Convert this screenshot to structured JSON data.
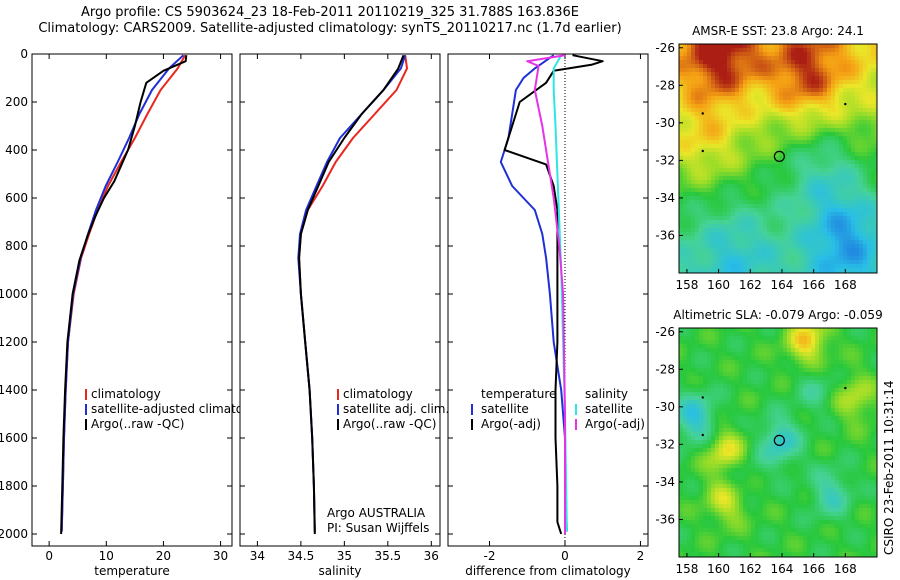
{
  "header": {
    "line1": "Argo profile: CS 5903624_23 18-Feb-2011 20110219_325 31.788S 163.836E",
    "line2": "Climatology: CARS2009. Satellite-adjusted climatology: synTS_20110217.nc (1.7d earlier)"
  },
  "credit": {
    "program": "Argo AUSTRALIA",
    "pi": "PI: Susan Wijffels",
    "stamp": "CSIRO 23-Feb-2011 10:31:14"
  },
  "colors": {
    "climatology": "#e8271f",
    "satellite": "#1f2fd6",
    "argo": "#000000",
    "sal_satellite": "#2ee6e6",
    "sal_argo": "#e633e6"
  },
  "chart_data": [
    {
      "type": "line",
      "xlabel": "temperature",
      "ylabel": "",
      "xlim": [
        -3,
        32
      ],
      "ylim": [
        2050,
        0
      ],
      "xticks": [
        "0",
        "10",
        "20",
        "30"
      ],
      "yticks": [
        "0",
        "200",
        "400",
        "600",
        "800",
        "1000",
        "1200",
        "1400",
        "1600",
        "1800",
        "2000"
      ],
      "legend": {
        "position": "lower-center",
        "entries": [
          "climatology",
          "satellite-adjusted climatolog",
          "Argo(..raw -QC)"
        ]
      },
      "series": [
        {
          "name": "climatology",
          "color_key": "climatology",
          "x": [
            23.8,
            22.5,
            19.5,
            17.2,
            15.0,
            12.6,
            10.3,
            8.5,
            7.0,
            5.6,
            4.3,
            3.3,
            2.9,
            2.6,
            2.4,
            2.2
          ],
          "y": [
            5,
            60,
            150,
            250,
            350,
            450,
            550,
            650,
            750,
            850,
            1000,
            1200,
            1400,
            1600,
            1800,
            1990
          ]
        },
        {
          "name": "satellite-adjusted climatolog",
          "color_key": "satellite",
          "x": [
            23.5,
            21.0,
            18.0,
            15.8,
            14.0,
            12.0,
            9.9,
            8.2,
            6.8,
            5.5,
            4.2,
            3.3,
            2.9,
            2.6,
            2.4,
            2.2
          ],
          "y": [
            5,
            60,
            150,
            250,
            350,
            450,
            550,
            650,
            750,
            850,
            1000,
            1200,
            1400,
            1600,
            1800,
            1990
          ]
        },
        {
          "name": "Argo(..raw -QC)",
          "color_key": "argo",
          "x": [
            24.0,
            23.9,
            20.0,
            17.0,
            16.0,
            15.0,
            13.8,
            12.5,
            11.4,
            9.6,
            8.0,
            6.7,
            5.3,
            4.1,
            3.2,
            2.8,
            2.5,
            2.3,
            2.1
          ],
          "y": [
            5,
            30,
            70,
            120,
            200,
            300,
            400,
            470,
            530,
            600,
            680,
            760,
            860,
            1000,
            1200,
            1400,
            1600,
            1800,
            2000
          ]
        }
      ]
    },
    {
      "type": "line",
      "xlabel": "salinity",
      "ylabel": "",
      "xlim": [
        33.8,
        36.1
      ],
      "ylim": [
        2050,
        0
      ],
      "xticks": [
        "34",
        "34.5",
        "35",
        "35.5",
        "36"
      ],
      "legend": {
        "position": "lower-center",
        "entries": [
          "climatology",
          "satellite adj. clim.",
          "Argo(..raw -QC)"
        ]
      },
      "series": [
        {
          "name": "climatology",
          "color_key": "climatology",
          "x": [
            35.7,
            35.72,
            35.6,
            35.35,
            35.1,
            34.9,
            34.75,
            34.58,
            34.5,
            34.48,
            34.5,
            34.55,
            34.6,
            34.63,
            34.65,
            34.66
          ],
          "y": [
            5,
            60,
            150,
            250,
            350,
            450,
            550,
            650,
            750,
            850,
            1000,
            1200,
            1400,
            1600,
            1800,
            1990
          ]
        },
        {
          "name": "satellite adj. clim.",
          "color_key": "satellite",
          "x": [
            35.7,
            35.65,
            35.45,
            35.2,
            34.95,
            34.8,
            34.68,
            34.56,
            34.49,
            34.47,
            34.5,
            34.55,
            34.6,
            34.63,
            34.65,
            34.66
          ],
          "y": [
            5,
            60,
            150,
            250,
            350,
            450,
            550,
            650,
            750,
            850,
            1000,
            1200,
            1400,
            1600,
            1800,
            1990
          ]
        },
        {
          "name": "Argo(..raw -QC)",
          "color_key": "argo",
          "x": [
            35.68,
            35.62,
            35.45,
            35.2,
            35.0,
            34.82,
            34.7,
            34.58,
            34.5,
            34.48,
            34.5,
            34.55,
            34.6,
            34.63,
            34.65,
            34.66
          ],
          "y": [
            5,
            60,
            150,
            250,
            350,
            450,
            550,
            650,
            750,
            850,
            1000,
            1200,
            1400,
            1600,
            1800,
            2000
          ]
        }
      ]
    },
    {
      "type": "line",
      "xlabel": "difference from climatology",
      "ylabel": "",
      "xlim": [
        -3.1,
        2.2
      ],
      "ylim": [
        2050,
        0
      ],
      "xticks": [
        "-2",
        "0",
        "2"
      ],
      "legend": {
        "position": "lower-center",
        "groups": [
          {
            "heading": "temperature",
            "entries": [
              "satellite",
              "Argo(-adj)"
            ]
          },
          {
            "heading": "salinity",
            "entries": [
              "satellite",
              "Argo(-adj)"
            ]
          }
        ]
      },
      "series": [
        {
          "name": "temperature satellite",
          "color_key": "satellite",
          "x": [
            -0.3,
            -0.8,
            -1.1,
            -1.3,
            -1.4,
            -1.5,
            -1.7,
            -1.4,
            -0.8,
            -0.6,
            -0.5,
            -0.4,
            -0.3,
            -0.2,
            -0.1,
            -0.05,
            0.0,
            0.0,
            0.05
          ],
          "y": [
            5,
            60,
            100,
            150,
            250,
            350,
            450,
            550,
            650,
            750,
            850,
            1000,
            1200,
            1300,
            1400,
            1500,
            1600,
            1800,
            1990
          ]
        },
        {
          "name": "temperature Argo(-adj)",
          "color_key": "argo",
          "x": [
            0.2,
            1.0,
            0.7,
            -0.3,
            -0.5,
            -1.2,
            -1.6,
            -0.5,
            -0.3,
            -0.2,
            -0.2,
            -0.2,
            -0.2,
            -0.25,
            -0.25,
            -0.2,
            -0.2,
            -0.1
          ],
          "y": [
            5,
            30,
            45,
            70,
            120,
            200,
            400,
            460,
            550,
            650,
            800,
            1000,
            1200,
            1400,
            1600,
            1800,
            1950,
            2000
          ]
        },
        {
          "name": "salinity satellite",
          "color_key": "sal_satellite",
          "x": [
            -0.1,
            -0.3,
            -0.3,
            -0.25,
            -0.2,
            -0.15,
            -0.1,
            -0.05,
            0.0,
            0.05
          ],
          "y": [
            5,
            60,
            150,
            300,
            500,
            700,
            900,
            1200,
            1500,
            1990
          ]
        },
        {
          "name": "salinity Argo(-adj)",
          "color_key": "sal_argo",
          "x": [
            0.0,
            -1.0,
            -0.7,
            -0.8,
            -0.6,
            -0.45,
            -0.3,
            -0.15,
            -0.05,
            0.0,
            0.0
          ],
          "y": [
            5,
            30,
            50,
            150,
            300,
            450,
            600,
            800,
            1000,
            1500,
            2000
          ]
        }
      ]
    },
    {
      "type": "heatmap",
      "title": "AMSR-E SST: 23.8 Argo: 24.1",
      "xlim": [
        157.5,
        170
      ],
      "ylim": [
        -38,
        -25.8
      ],
      "xticks": [
        "158",
        "160",
        "162",
        "164",
        "166",
        "168"
      ],
      "yticks": [
        "-26",
        "-28",
        "-30",
        "-32",
        "-34",
        "-36"
      ],
      "marker": {
        "lon": 163.836,
        "lat": -31.788
      },
      "features": [
        {
          "kind": "warm",
          "lon": 160,
          "lat": -26.5,
          "strength": 1.0
        },
        {
          "kind": "warm",
          "lon": 165.5,
          "lat": -27.5,
          "strength": 0.9
        },
        {
          "kind": "warm",
          "lon": 159,
          "lat": -31,
          "strength": 0.6
        },
        {
          "kind": "cool",
          "lon": 168,
          "lat": -36,
          "strength": 1.0
        },
        {
          "kind": "cool",
          "lon": 166.5,
          "lat": -32.5,
          "strength": 0.7
        },
        {
          "kind": "cool",
          "lon": 161,
          "lat": -36.5,
          "strength": 0.5
        }
      ]
    },
    {
      "type": "heatmap",
      "title": "Altimetric SLA: -0.079 Argo: -0.059",
      "xlim": [
        157.5,
        170
      ],
      "ylim": [
        -38,
        -25.8
      ],
      "xticks": [
        "158",
        "160",
        "162",
        "164",
        "166",
        "168"
      ],
      "yticks": [
        "-26",
        "-28",
        "-30",
        "-32",
        "-34",
        "-36"
      ],
      "marker": {
        "lon": 163.836,
        "lat": -31.788
      },
      "features": [
        {
          "kind": "high",
          "lon": 165.5,
          "lat": -26.5,
          "strength": 1.0
        },
        {
          "kind": "high",
          "lon": 160.5,
          "lat": -32.5,
          "strength": 1.0
        },
        {
          "kind": "high",
          "lon": 160.5,
          "lat": -34.8,
          "strength": 0.8
        },
        {
          "kind": "high",
          "lon": 168.5,
          "lat": -29.5,
          "strength": 0.6
        },
        {
          "kind": "low",
          "lon": 158.5,
          "lat": -30.5,
          "strength": 1.0
        },
        {
          "kind": "low",
          "lon": 163.8,
          "lat": -31.8,
          "strength": 0.9
        },
        {
          "kind": "low",
          "lon": 167,
          "lat": -34.5,
          "strength": 0.7
        },
        {
          "kind": "low",
          "lon": 161,
          "lat": -33.5,
          "strength": 0.6
        },
        {
          "kind": "low",
          "lon": 166,
          "lat": -29,
          "strength": 0.4
        }
      ]
    }
  ]
}
